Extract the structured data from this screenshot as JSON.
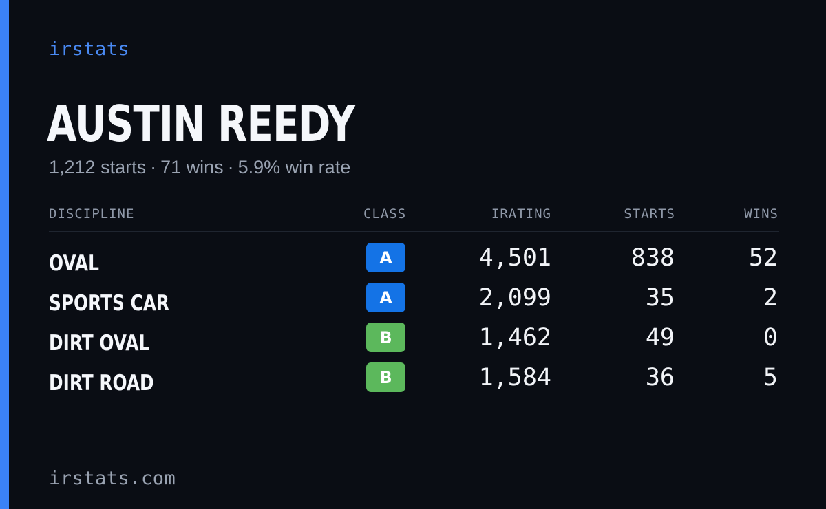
{
  "brand": "irstats",
  "player": {
    "name": "AUSTIN REEDY"
  },
  "summary": {
    "starts": "1,212 starts",
    "wins": "71 wins",
    "win_rate": "5.9% win rate",
    "separator": "·"
  },
  "table": {
    "headers": {
      "discipline": "DISCIPLINE",
      "class": "CLASS",
      "irating": "IRATING",
      "starts": "STARTS",
      "wins": "WINS"
    },
    "rows": [
      {
        "discipline": "OVAL",
        "class": "A",
        "class_color": "#1473e6",
        "irating": "4,501",
        "starts": "838",
        "wins": "52"
      },
      {
        "discipline": "SPORTS CAR",
        "class": "A",
        "class_color": "#1473e6",
        "irating": "2,099",
        "starts": "35",
        "wins": "2"
      },
      {
        "discipline": "DIRT OVAL",
        "class": "B",
        "class_color": "#5cb85c",
        "irating": "1,462",
        "starts": "49",
        "wins": "0"
      },
      {
        "discipline": "DIRT ROAD",
        "class": "B",
        "class_color": "#5cb85c",
        "irating": "1,584",
        "starts": "36",
        "wins": "5"
      }
    ]
  },
  "footer": "irstats.com",
  "colors": {
    "accent": "#3b82f6",
    "background": "#0a0d14",
    "class_a": "#1473e6",
    "class_b": "#5cb85c"
  }
}
